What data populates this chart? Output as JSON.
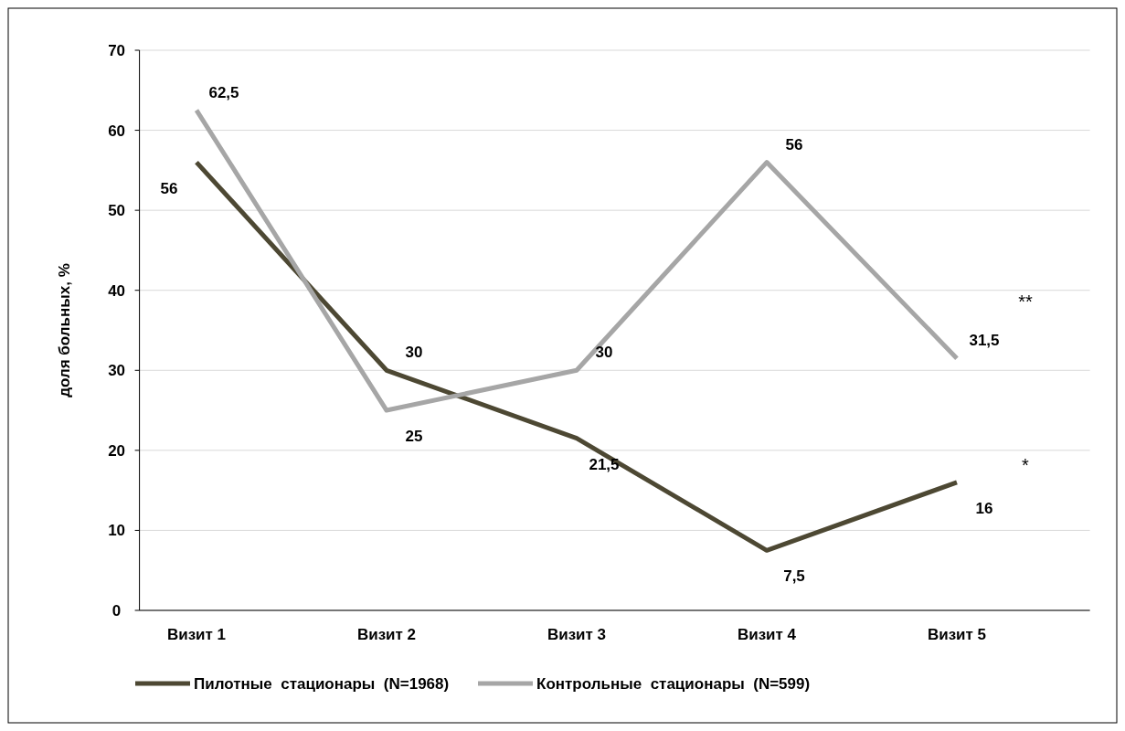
{
  "chart_data": {
    "type": "line",
    "ylabel": "доля больных, %",
    "categories": [
      "Визит 1",
      "Визит 2",
      "Визит 3",
      "Визит 4",
      "Визит 5"
    ],
    "series": [
      {
        "name": "Пилотные  стационары  (N=1968)",
        "color": "#4d4833",
        "values": [
          56,
          30,
          21.5,
          7.5,
          16
        ],
        "value_labels": [
          "56",
          "30",
          "21,5",
          "7,5",
          "16"
        ]
      },
      {
        "name": "Контрольные  стационары  (N=599)",
        "color": "#a6a6a6",
        "values": [
          62.5,
          25,
          30,
          56,
          31.5
        ],
        "value_labels": [
          "62,5",
          "25",
          "30",
          "56",
          "31,5"
        ]
      }
    ],
    "ylim": [
      0,
      70
    ],
    "yticks": [
      0,
      10,
      20,
      30,
      40,
      50,
      60,
      70
    ],
    "grid": "y",
    "legend": "bottom",
    "line_style": "solid",
    "annotations": [
      "*",
      "**"
    ]
  }
}
